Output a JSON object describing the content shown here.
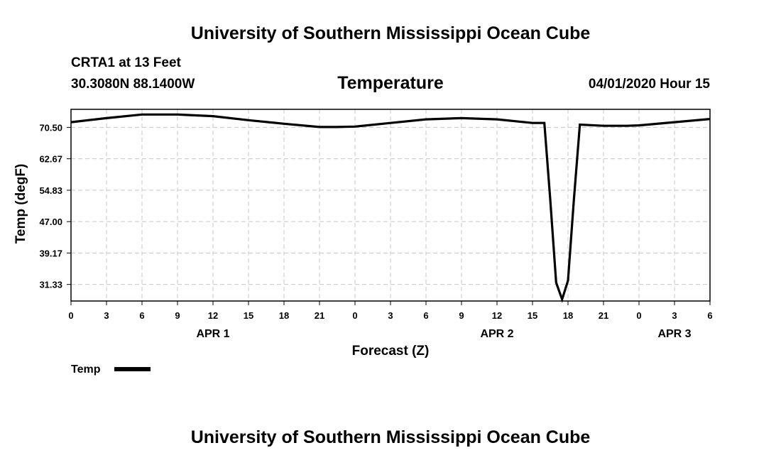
{
  "header": {
    "top_title": "University of Southern Mississippi Ocean Cube",
    "station": "CRTA1 at 13 Feet",
    "location": "30.3080N 88.1400W",
    "date_label": "04/01/2020 Hour 15",
    "bottom_title": "University of Southern Mississippi Ocean Cube"
  },
  "legend": {
    "label": "Temp",
    "color": "#000000"
  },
  "chart_data": {
    "type": "line",
    "title": "Temperature",
    "xlabel": "Forecast (Z)",
    "ylabel": "Temp (degF)",
    "xlim": [
      0,
      54
    ],
    "ylim": [
      27.2,
      75.0
    ],
    "grid": true,
    "legend_position": "bottom-left",
    "x_ticks": [
      {
        "x": 0,
        "label": "0"
      },
      {
        "x": 3,
        "label": "3"
      },
      {
        "x": 6,
        "label": "6"
      },
      {
        "x": 9,
        "label": "9"
      },
      {
        "x": 12,
        "label": "12"
      },
      {
        "x": 15,
        "label": "15"
      },
      {
        "x": 18,
        "label": "18"
      },
      {
        "x": 21,
        "label": "21"
      },
      {
        "x": 24,
        "label": "0"
      },
      {
        "x": 27,
        "label": "3"
      },
      {
        "x": 30,
        "label": "6"
      },
      {
        "x": 33,
        "label": "9"
      },
      {
        "x": 36,
        "label": "12"
      },
      {
        "x": 39,
        "label": "15"
      },
      {
        "x": 42,
        "label": "18"
      },
      {
        "x": 45,
        "label": "21"
      },
      {
        "x": 48,
        "label": "0"
      },
      {
        "x": 51,
        "label": "3"
      },
      {
        "x": 54,
        "label": "6"
      }
    ],
    "day_labels": [
      {
        "x": 12,
        "label": "APR 1"
      },
      {
        "x": 36,
        "label": "APR 2"
      },
      {
        "x": 51,
        "label": "APR 3"
      }
    ],
    "y_ticks": [
      {
        "value": 31.33,
        "label": "31.33"
      },
      {
        "value": 39.17,
        "label": "39.17"
      },
      {
        "value": 47.0,
        "label": "47.00"
      },
      {
        "value": 54.83,
        "label": "54.83"
      },
      {
        "value": 62.67,
        "label": "62.67"
      },
      {
        "value": 70.5,
        "label": "70.50"
      }
    ],
    "series": [
      {
        "name": "Temp",
        "color": "#000000",
        "x": [
          0,
          3,
          6,
          9,
          12,
          15,
          18,
          21,
          22.5,
          24,
          27,
          30,
          33,
          36,
          39,
          40,
          40.5,
          41,
          41.5,
          42,
          42.5,
          43,
          45,
          47,
          48,
          51,
          54
        ],
        "y": [
          71.8,
          72.8,
          73.7,
          73.7,
          73.3,
          72.3,
          71.4,
          70.6,
          70.6,
          70.7,
          71.6,
          72.5,
          72.8,
          72.5,
          71.6,
          71.6,
          52.5,
          31.8,
          27.6,
          32.3,
          52.5,
          71.2,
          70.9,
          70.9,
          71.0,
          71.8,
          72.6
        ]
      }
    ]
  }
}
